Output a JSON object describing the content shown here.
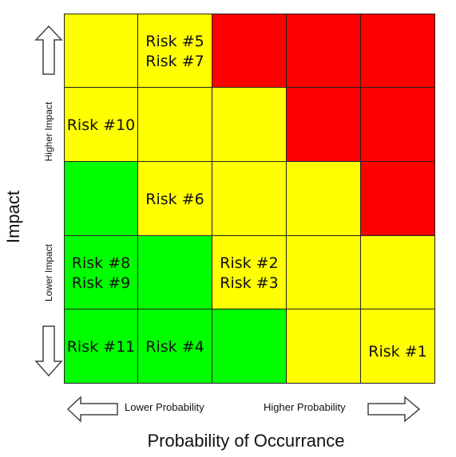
{
  "colors": {
    "red": "#ff0000",
    "yellow": "#ffff00",
    "green": "#00ff00"
  },
  "grid": [
    [
      "yellow",
      "yellow",
      "red",
      "red",
      "red"
    ],
    [
      "yellow",
      "yellow",
      "yellow",
      "red",
      "red"
    ],
    [
      "green",
      "yellow",
      "yellow",
      "yellow",
      "red"
    ],
    [
      "green",
      "green",
      "yellow",
      "yellow",
      "yellow"
    ],
    [
      "green",
      "green",
      "green",
      "yellow",
      "yellow"
    ]
  ],
  "risks": [
    {
      "row": 0,
      "col": 1,
      "lines": [
        "Risk #5",
        "Risk #7"
      ]
    },
    {
      "row": 1,
      "col": 0,
      "lines": [
        "Risk #10"
      ]
    },
    {
      "row": 2,
      "col": 1,
      "lines": [
        "Risk #6"
      ]
    },
    {
      "row": 3,
      "col": 0,
      "lines": [
        "Risk #8",
        "Risk #9"
      ]
    },
    {
      "row": 3,
      "col": 2,
      "lines": [
        "Risk #2",
        "Risk #3"
      ]
    },
    {
      "row": 4,
      "col": 0,
      "lines": [
        "Risk #11"
      ]
    },
    {
      "row": 4,
      "col": 1,
      "lines": [
        "Risk #4"
      ]
    },
    {
      "row": 4,
      "col": 4,
      "lines": [
        "Risk #1"
      ]
    }
  ],
  "labels": {
    "y_axis_title": "Impact",
    "higher_impact": "Higher Impact",
    "lower_impact": "Lower Impact",
    "x_axis_title": "Probability of Occurrance",
    "lower_probability": "Lower Probability",
    "higher_probability": "Higher Probability"
  },
  "icons": [
    "arrow-up-icon",
    "arrow-down-icon",
    "arrow-left-icon",
    "arrow-right-icon"
  ]
}
